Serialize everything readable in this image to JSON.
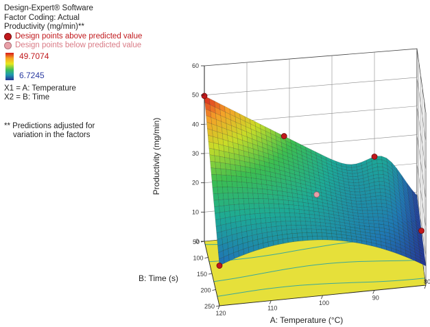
{
  "header": {
    "software": "Design-Expert® Software",
    "factor_coding": "Factor Coding: Actual",
    "response": "Productivity (mg/min)**"
  },
  "points_legend": {
    "above": "Design points above predicted value",
    "below": "Design points below predicted value",
    "above_color": "#c0181c",
    "below_color": "#e8a0a8"
  },
  "colorbar": {
    "max": "49.7074",
    "min": "6.7245"
  },
  "factors": {
    "x1": "X1 = A: Temperature",
    "x2": "X2 = B: Time"
  },
  "note": {
    "line1": "** Predictions adjusted for",
    "line2": "variation in the factors"
  },
  "chart_data": {
    "type": "surface3d",
    "zlabel": "Productivity (mg/min)",
    "xlabel": "A: Temperature (°C)",
    "ylabel": "B: Time (s)",
    "z_ticks": [
      "60",
      "50",
      "40",
      "30",
      "20",
      "10",
      "0"
    ],
    "x_ticks": [
      "120",
      "110",
      "100",
      "90",
      "80"
    ],
    "y_ticks": [
      "50",
      "100",
      "150",
      "200",
      "250"
    ],
    "zlim": [
      0,
      60
    ],
    "xlim": [
      120,
      80
    ],
    "ylim": [
      50,
      250
    ],
    "floor_color": "#e6e03a",
    "contour_color": "#3aa89a",
    "surface_description": "Productivity falls from ~49.7 at 120 °C / 50 s to ~6.7 at 80 °C",
    "design_points": [
      {
        "A": 120,
        "B": 50,
        "productivity": 49.7,
        "position": "above"
      },
      {
        "A": 105,
        "B": 50,
        "productivity": 46,
        "position": "above"
      },
      {
        "A": 88,
        "B": 50,
        "productivity": 26,
        "position": "above"
      },
      {
        "A": 120,
        "B": 250,
        "productivity": 10,
        "position": "above"
      },
      {
        "A": 80,
        "B": 150,
        "productivity": 6.7,
        "position": "above"
      },
      {
        "A": 100,
        "B": 150,
        "productivity": 8,
        "position": "below"
      }
    ]
  }
}
